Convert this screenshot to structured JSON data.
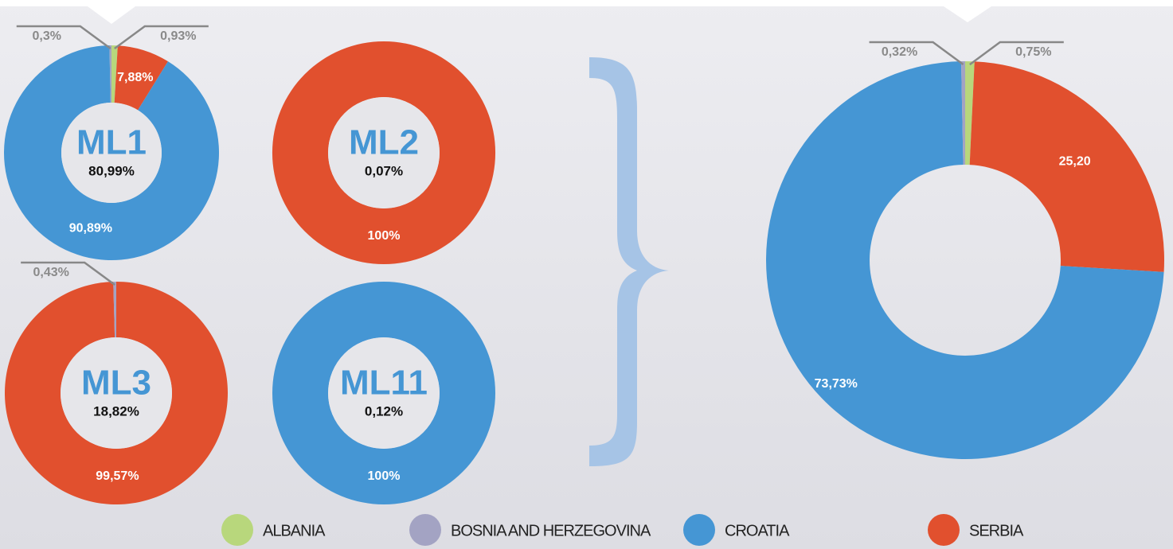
{
  "legend": {
    "categories": [
      "ALBANIA",
      "BOSNIA AND HERZEGOVINA",
      "CROATIA",
      "SERBIA"
    ],
    "colors": [
      "#b8d77c",
      "#a3a3c3",
      "#4596d4",
      "#e1502e"
    ]
  },
  "chart_data": [
    {
      "type": "donut",
      "title": "ML1",
      "subtitle": "80,99%",
      "values": [
        0.93,
        0.3,
        90.89,
        7.88
      ],
      "value_labels": [
        "0,93%",
        "0,3%",
        "90,89%",
        "7,88%"
      ]
    },
    {
      "type": "donut",
      "title": "ML2",
      "subtitle": "0,07%",
      "values": [
        null,
        null,
        null,
        100
      ],
      "value_labels": [
        null,
        null,
        null,
        "100%"
      ]
    },
    {
      "type": "donut",
      "title": "ML3",
      "subtitle": "18,82%",
      "values": [
        null,
        0.43,
        null,
        99.57
      ],
      "value_labels": [
        null,
        "0,43%",
        null,
        "99,57%"
      ]
    },
    {
      "type": "donut",
      "title": "ML11",
      "subtitle": "0,12%",
      "values": [
        null,
        null,
        100,
        null
      ],
      "value_labels": [
        null,
        null,
        "100%",
        null
      ]
    },
    {
      "type": "donut",
      "values": [
        0.75,
        0.32,
        73.73,
        25.2
      ],
      "value_labels": [
        "0,75%",
        "0,32%",
        "73,73%",
        "25,20"
      ]
    }
  ]
}
